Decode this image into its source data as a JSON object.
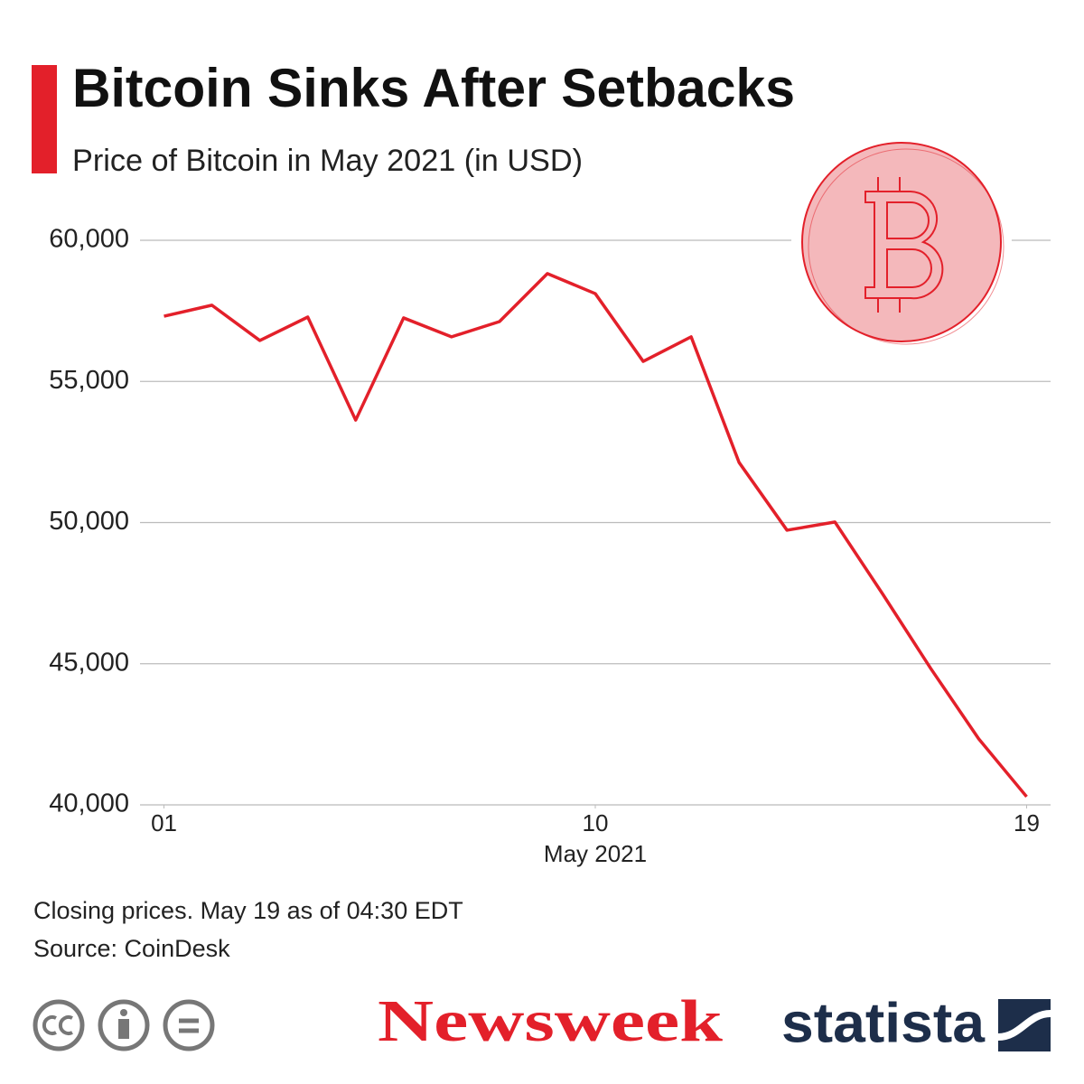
{
  "chart_data": {
    "type": "line",
    "title": "Bitcoin Sinks After Setbacks",
    "subtitle": "Price of Bitcoin in May 2021 (in USD)",
    "xlabel": "May 2021",
    "note": "Closing prices. May 19 as of 04:30 EDT",
    "source": "Source: CoinDesk",
    "x": [
      1,
      2,
      3,
      4,
      5,
      6,
      7,
      8,
      9,
      10,
      11,
      12,
      13,
      14,
      15,
      16,
      17,
      18,
      19
    ],
    "series": [
      {
        "color": "#e3202a",
        "values": [
          57310,
          57700,
          56450,
          57280,
          53630,
          57250,
          56580,
          57120,
          58820,
          58110,
          55710,
          56580,
          52130,
          49730,
          50020,
          47460,
          44830,
          42340,
          40290
        ]
      }
    ],
    "xlim": [
      0.5,
      19.5
    ],
    "xticks": [
      {
        "value": 1,
        "label": "01"
      },
      10,
      19
    ],
    "ylim": [
      40000,
      60000
    ],
    "yticks": [
      {
        "value": 40000,
        "label": "40,000"
      },
      {
        "value": 45000,
        "label": "45,000"
      },
      {
        "value": 50000,
        "label": "50,000"
      },
      {
        "value": 55000,
        "label": "55,000"
      },
      {
        "value": 60000,
        "label": "60,000"
      }
    ],
    "grid": true
  },
  "logos": {
    "newsweek": "Newsweek",
    "statista": "statista"
  }
}
